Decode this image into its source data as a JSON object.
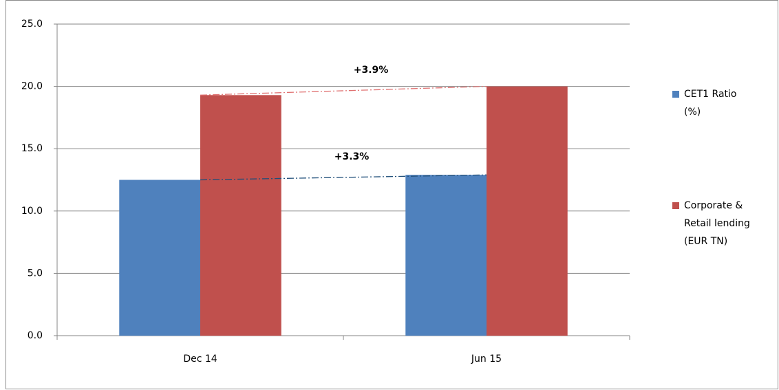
{
  "chart_data": {
    "type": "bar",
    "categories": [
      "Dec 14",
      "Jun 15"
    ],
    "series": [
      {
        "name": "CET1 Ratio (%)",
        "color": "#4f81bd",
        "values": [
          12.5,
          12.9
        ]
      },
      {
        "name": "Corporate & Retail lending (EUR TN)",
        "color": "#c0504d",
        "values": [
          19.3,
          20.0
        ]
      }
    ],
    "annotations": [
      "+3.3%",
      "+3.9%"
    ],
    "ylim": [
      0,
      25
    ],
    "yticks": [
      {
        "value": 0,
        "label": "0.0"
      },
      {
        "value": 5,
        "label": "5.0"
      },
      {
        "value": 10,
        "label": "10.0"
      },
      {
        "value": 15,
        "label": "15.0"
      },
      {
        "value": 20,
        "label": "20.0"
      },
      {
        "value": 25,
        "label": "25.0"
      }
    ],
    "grid": true,
    "legend": "right"
  }
}
